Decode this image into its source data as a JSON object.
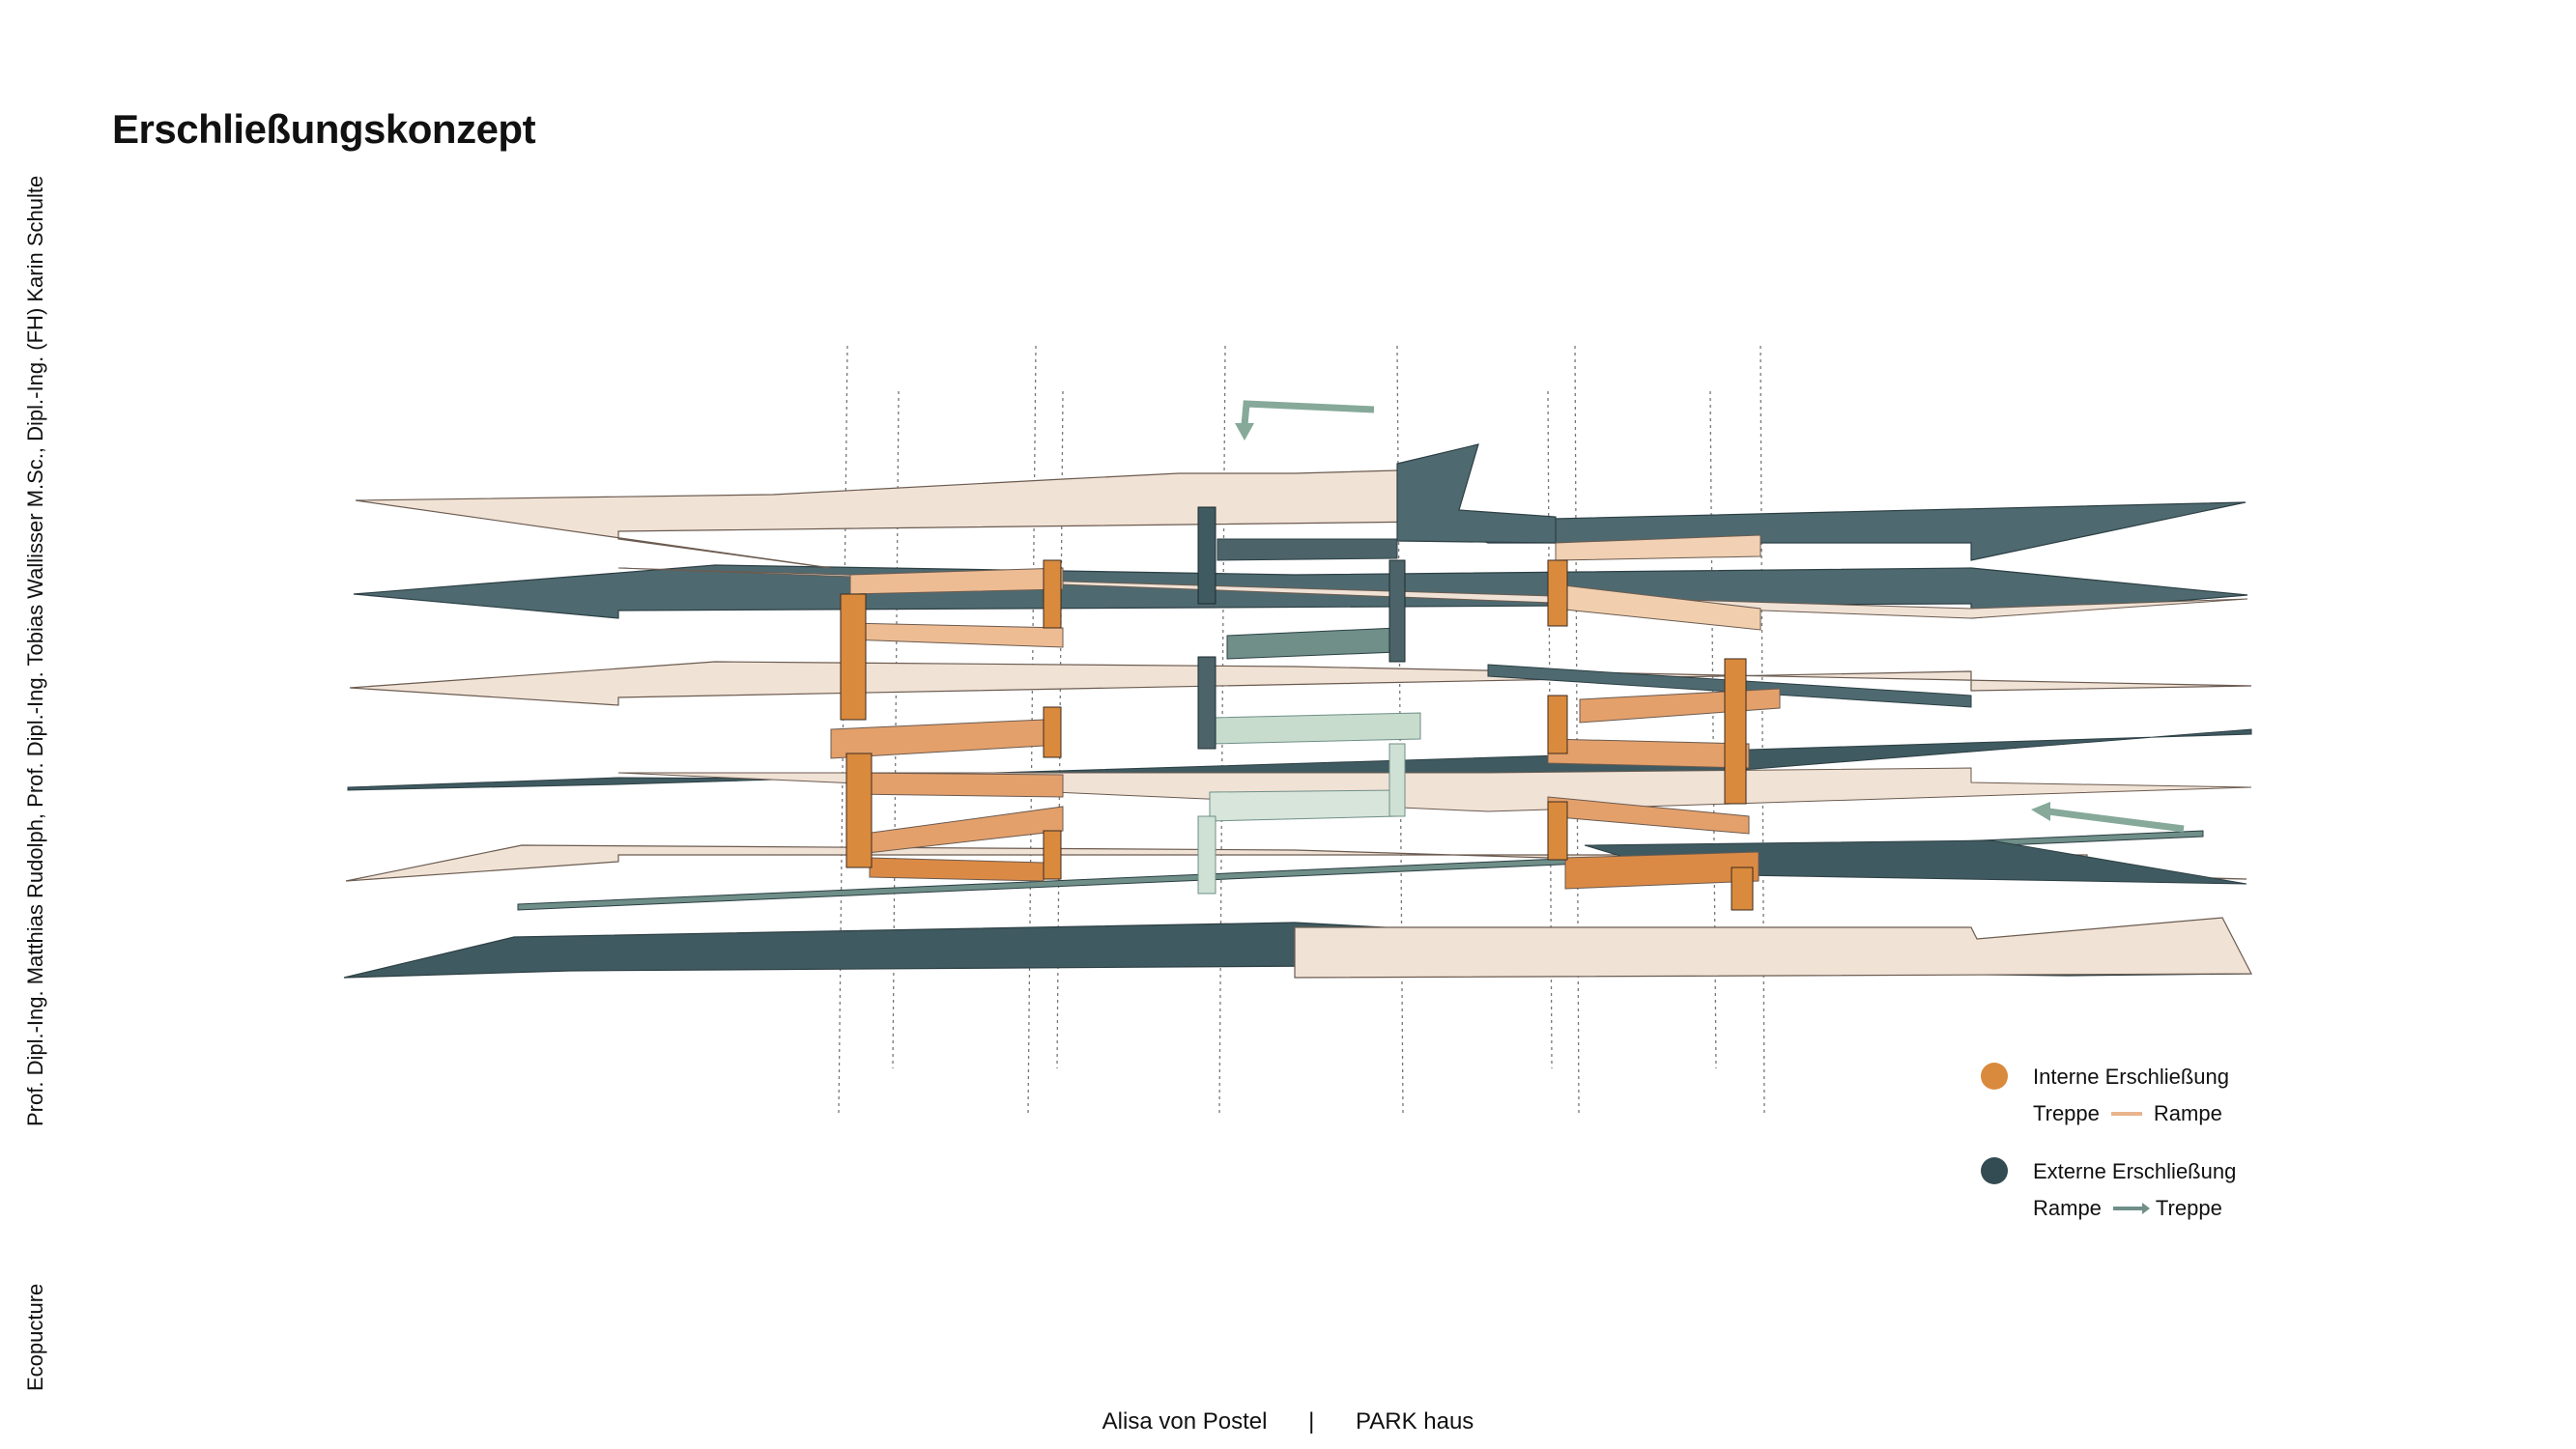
{
  "title": "Erschließungskonzept",
  "side_credits": "Prof. Dipl.-Ing. Matthias Rudolph, Prof. Dipl.-Ing. Tobias Wallisser M.Sc., Dipl.-Ing. (FH) Karin Schulte",
  "side_project": "Ecopucture",
  "legend": {
    "internal": {
      "title": "Interne Erschließung",
      "left_label": "Treppe",
      "right_label": "Rampe",
      "color": "#d98a3d",
      "line_color": "#e9b48c"
    },
    "external": {
      "title": "Externe Erschließung",
      "left_label": "Rampe",
      "right_label": "Treppe",
      "color": "#334b52",
      "line_color": "#6f8f88"
    }
  },
  "footer": {
    "author": "Alisa von Postel",
    "separator": "|",
    "project": "PARK haus"
  },
  "colors": {
    "light_slab": "#f1e2d6",
    "dark_slab": "#4e6a70",
    "internal_orange": "#db8a45",
    "internal_light": "#eebc93",
    "external_dark": "#4c6469",
    "external_light": "#cfe0d4",
    "arrow_green": "#86a99a"
  }
}
